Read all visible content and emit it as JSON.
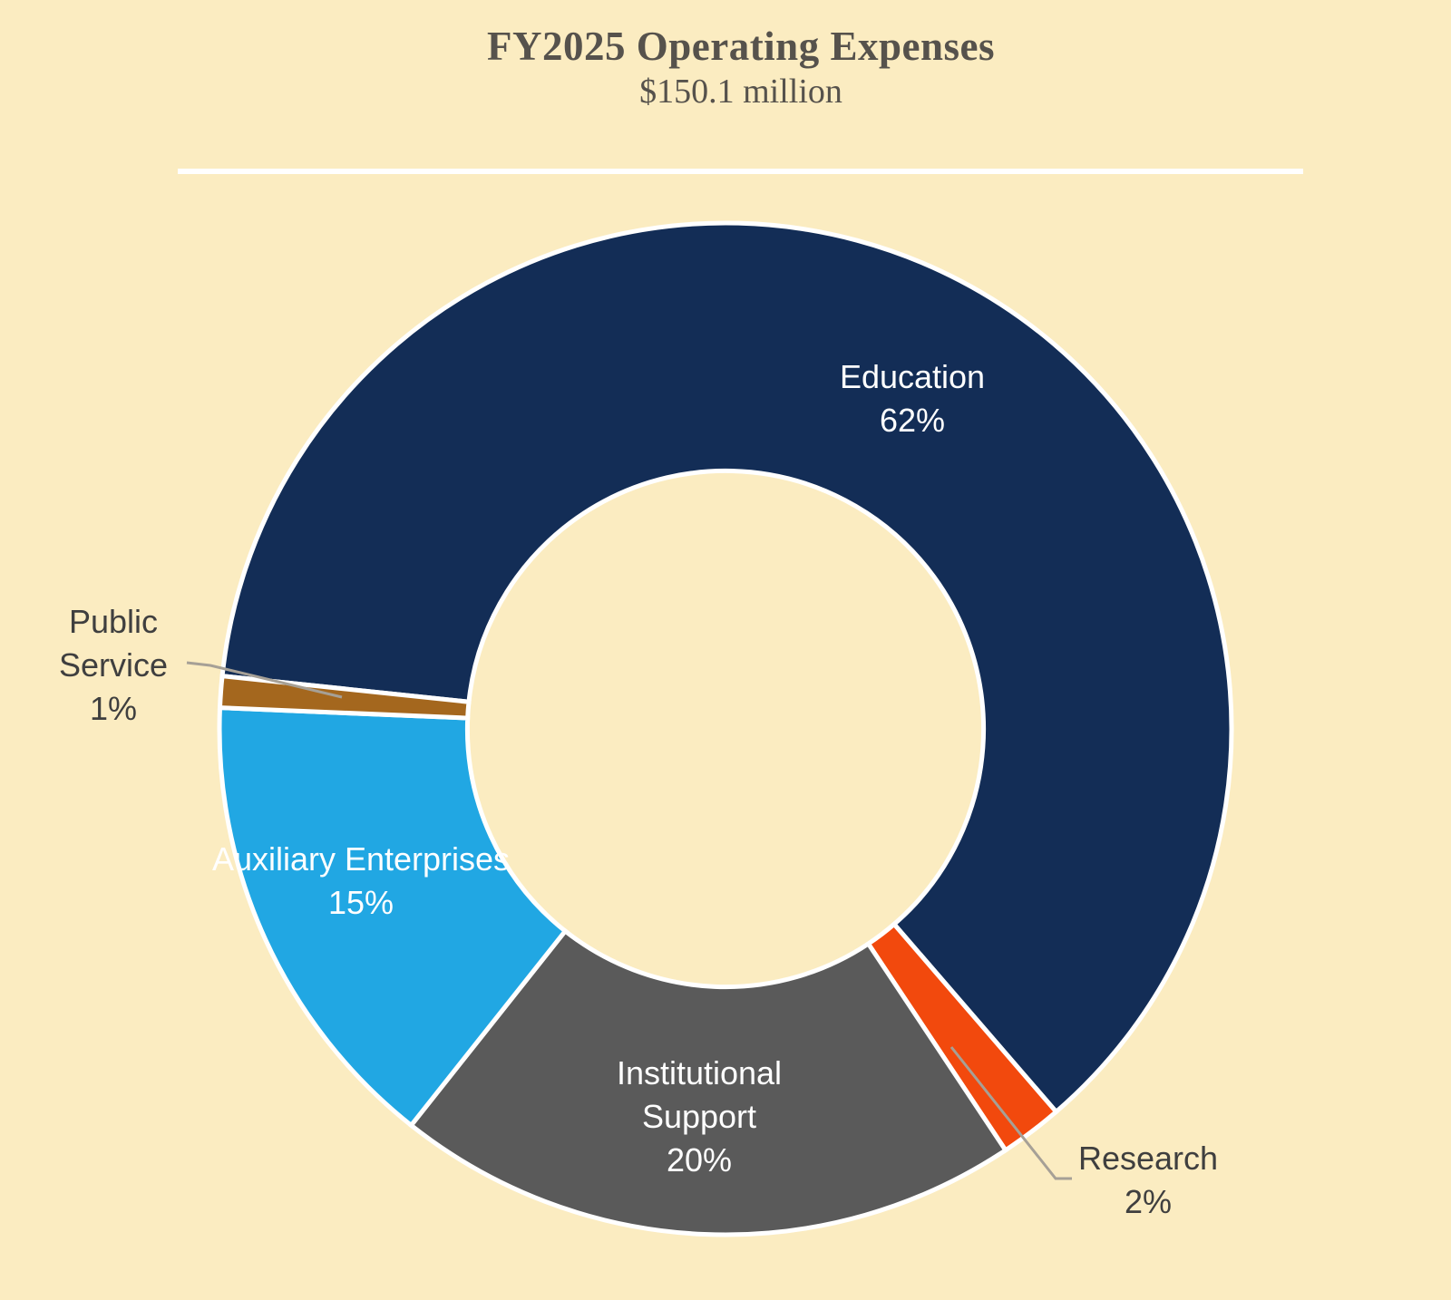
{
  "header": {
    "title": "FY2025 Operating Expenses",
    "subtitle": "$150.1 million"
  },
  "colors": {
    "background": "#FBECC1",
    "divider": "#FFFFFF",
    "title_text": "#56524C",
    "inside_label_text": "#FFFFFF",
    "outside_label_text": "#3F3F3F",
    "leader_line": "#A6A096",
    "slice_border": "#FFFFFF"
  },
  "chart_data": {
    "type": "pie",
    "subtype": "donut",
    "title": "FY2025 Operating Expenses",
    "total_label": "$150.1 million",
    "value_unit": "percent of total",
    "direction": "clockwise",
    "start_angle_deg": 276,
    "inner_radius_ratio": 0.51,
    "legend": "none",
    "slices": [
      {
        "label": "Education",
        "value": 62,
        "pct_label": "62%",
        "color": "#132D56",
        "label_position": "inside"
      },
      {
        "label": "Research",
        "value": 2,
        "pct_label": "2%",
        "color": "#F2490D",
        "label_position": "outside-callout"
      },
      {
        "label": "Institutional Support",
        "value": 20,
        "pct_label": "20%",
        "color": "#5A5A5A",
        "label_position": "inside"
      },
      {
        "label": "Auxiliary Enterprises",
        "value": 15,
        "pct_label": "15%",
        "color": "#21A7E3",
        "label_position": "inside"
      },
      {
        "label": "Public Service",
        "value": 1,
        "pct_label": "1%",
        "color": "#A4671E",
        "label_position": "outside-callout"
      }
    ]
  }
}
